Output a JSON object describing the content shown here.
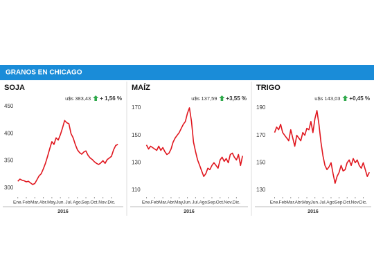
{
  "banner": "GRANOS EN CHICAGO",
  "chart_data": [
    {
      "type": "line",
      "title": "SOJA",
      "price": "u$s 383,43",
      "change": "+ 1,56 %",
      "xlabel": "2016",
      "color": "#e0161e",
      "xlim": [
        -0.3,
        11.9
      ],
      "ylim": [
        283,
        455
      ],
      "yticks": [
        300,
        350,
        400,
        450
      ],
      "xticks": [
        {
          "value": 0,
          "label": "Ene."
        },
        {
          "value": 1,
          "label": "Feb"
        },
        {
          "value": 2,
          "label": "Mar."
        },
        {
          "value": 3,
          "label": "Abr."
        },
        {
          "value": 4,
          "label": "May."
        },
        {
          "value": 5,
          "label": "Jun."
        },
        {
          "value": 6,
          "label": "Jul."
        },
        {
          "value": 7,
          "label": "Ago."
        },
        {
          "value": 8,
          "label": "Sep."
        },
        {
          "value": 9,
          "label": "Oct."
        },
        {
          "value": 10,
          "label": "Nov."
        },
        {
          "value": 11,
          "label": "Dic."
        }
      ],
      "x": [
        0,
        0.25,
        0.5,
        0.75,
        1,
        1.25,
        1.5,
        1.75,
        2,
        2.25,
        2.5,
        2.75,
        3,
        3.25,
        3.5,
        3.75,
        4,
        4.25,
        4.5,
        4.75,
        5,
        5.25,
        5.5,
        5.75,
        6,
        6.25,
        6.5,
        6.75,
        7,
        7.25,
        7.5,
        7.75,
        8,
        8.25,
        8.5,
        8.75,
        9,
        9.25,
        9.5,
        9.75,
        10,
        10.25,
        10.5,
        10.75,
        11,
        11.25,
        11.5,
        11.75
      ],
      "values": [
        312,
        316,
        314,
        313,
        311,
        312,
        309,
        306,
        308,
        315,
        322,
        326,
        335,
        345,
        358,
        372,
        385,
        380,
        392,
        388,
        398,
        410,
        424,
        420,
        418,
        400,
        392,
        380,
        370,
        365,
        362,
        366,
        368,
        360,
        355,
        352,
        348,
        345,
        343,
        346,
        350,
        345,
        352,
        355,
        358,
        370,
        378,
        380
      ]
    },
    {
      "type": "line",
      "title": "MAÍZ",
      "price": "u$s 137,59",
      "change": "+3,55 %",
      "xlabel": "2016",
      "color": "#e0161e",
      "xlim": [
        -0.3,
        11.9
      ],
      "ylim": [
        105,
        173
      ],
      "yticks": [
        110,
        130,
        150,
        170
      ],
      "xticks": [
        {
          "value": 0,
          "label": "Ene."
        },
        {
          "value": 1,
          "label": "Feb"
        },
        {
          "value": 2,
          "label": "Mar."
        },
        {
          "value": 3,
          "label": "Abr."
        },
        {
          "value": 4,
          "label": "May."
        },
        {
          "value": 5,
          "label": "Jun."
        },
        {
          "value": 6,
          "label": "Jul."
        },
        {
          "value": 7,
          "label": "Ago."
        },
        {
          "value": 8,
          "label": "Sep."
        },
        {
          "value": 9,
          "label": "Oct."
        },
        {
          "value": 10,
          "label": "Nov."
        },
        {
          "value": 11,
          "label": "Dic."
        }
      ],
      "x": [
        0,
        0.25,
        0.5,
        0.75,
        1,
        1.25,
        1.5,
        1.75,
        2,
        2.25,
        2.5,
        2.75,
        3,
        3.25,
        3.5,
        3.75,
        4,
        4.25,
        4.5,
        4.75,
        5,
        5.25,
        5.5,
        5.75,
        6,
        6.25,
        6.5,
        6.75,
        7,
        7.25,
        7.5,
        7.75,
        8,
        8.25,
        8.5,
        8.75,
        9,
        9.25,
        9.5,
        9.75,
        10,
        10.25,
        10.5,
        10.75,
        11,
        11.25,
        11.5,
        11.75
      ],
      "values": [
        143,
        140,
        142,
        141,
        140,
        139,
        142,
        139,
        141,
        138,
        136,
        137,
        140,
        145,
        148,
        150,
        152,
        155,
        158,
        160,
        166,
        170,
        160,
        145,
        138,
        132,
        128,
        124,
        120,
        122,
        126,
        125,
        128,
        130,
        128,
        126,
        132,
        134,
        131,
        133,
        130,
        136,
        137,
        134,
        132,
        136,
        128,
        135
      ]
    },
    {
      "type": "line",
      "title": "TRIGO",
      "price": "u$s 143,03",
      "change": "+0,45 %",
      "xlabel": "2016",
      "color": "#e0161e",
      "xlim": [
        -0.3,
        11.9
      ],
      "ylim": [
        125,
        193
      ],
      "yticks": [
        130,
        150,
        170,
        190
      ],
      "xticks": [
        {
          "value": 0,
          "label": "Ene."
        },
        {
          "value": 1,
          "label": "Feb"
        },
        {
          "value": 2,
          "label": "Mar."
        },
        {
          "value": 3,
          "label": "Abr."
        },
        {
          "value": 4,
          "label": "May."
        },
        {
          "value": 5,
          "label": "Jun."
        },
        {
          "value": 6,
          "label": "Jul."
        },
        {
          "value": 7,
          "label": "Ago."
        },
        {
          "value": 8,
          "label": "Sep."
        },
        {
          "value": 9,
          "label": "Oct."
        },
        {
          "value": 10,
          "label": "Nov."
        },
        {
          "value": 11,
          "label": "Dic."
        }
      ],
      "x": [
        0,
        0.25,
        0.5,
        0.75,
        1,
        1.25,
        1.5,
        1.75,
        2,
        2.25,
        2.5,
        2.75,
        3,
        3.25,
        3.5,
        3.75,
        4,
        4.25,
        4.5,
        4.75,
        5,
        5.25,
        5.5,
        5.75,
        6,
        6.25,
        6.5,
        6.75,
        7,
        7.25,
        7.5,
        7.75,
        8,
        8.25,
        8.5,
        8.75,
        9,
        9.25,
        9.5,
        9.75,
        10,
        10.25,
        10.5,
        10.75,
        11,
        11.25,
        11.5,
        11.75
      ],
      "values": [
        172,
        176,
        174,
        178,
        172,
        170,
        168,
        166,
        174,
        168,
        162,
        170,
        168,
        166,
        172,
        170,
        175,
        174,
        180,
        172,
        182,
        188,
        178,
        165,
        155,
        148,
        145,
        147,
        150,
        142,
        135,
        140,
        143,
        148,
        144,
        145,
        150,
        152,
        148,
        153,
        150,
        152,
        148,
        146,
        150,
        145,
        140,
        143
      ]
    }
  ]
}
